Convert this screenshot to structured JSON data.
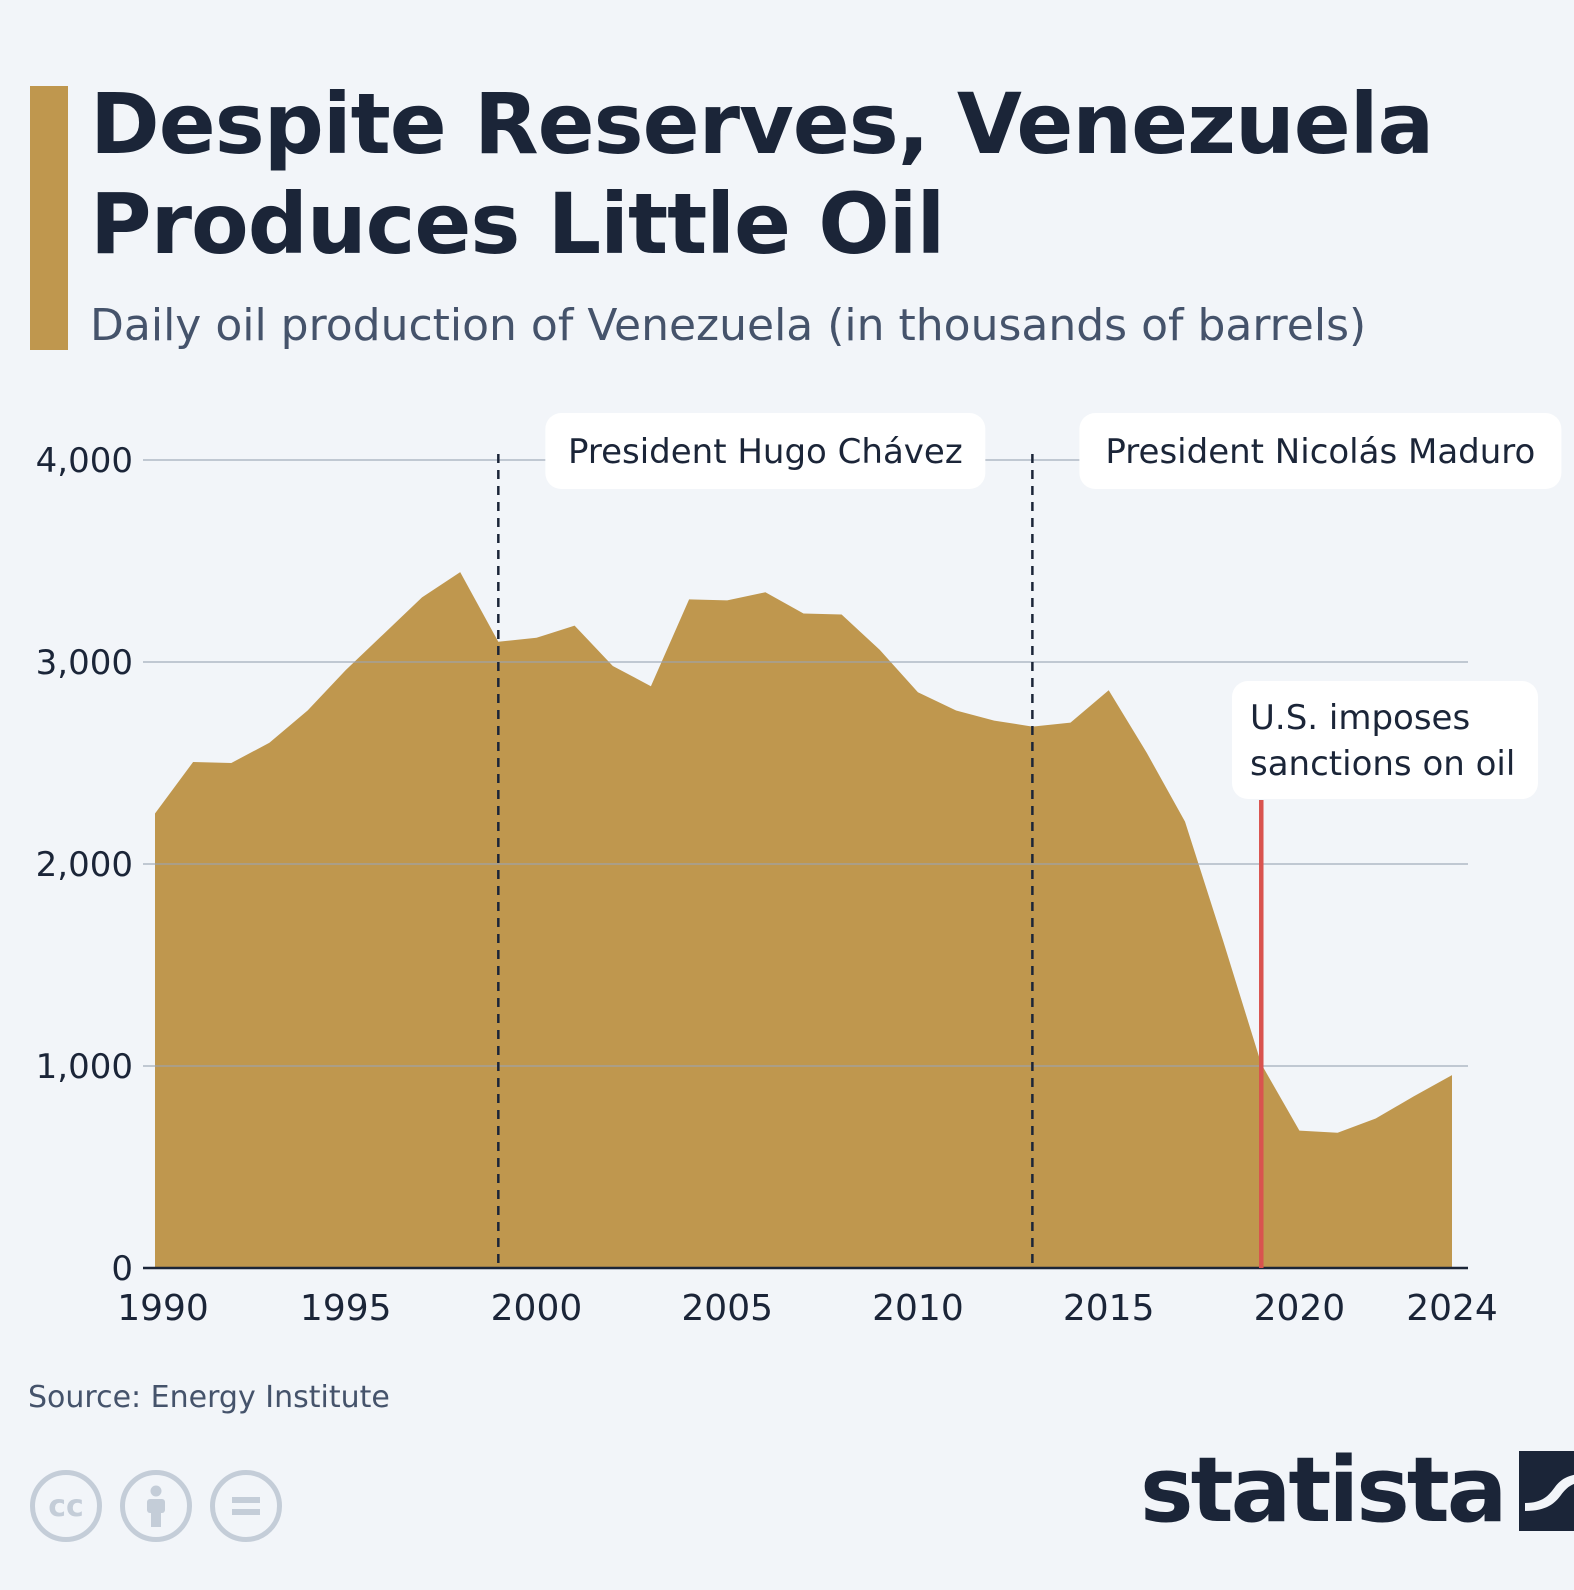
{
  "header": {
    "title": "Despite Reserves, Venezuela Produces Little Oil",
    "subtitle": "Daily oil production of Venezuela (in thousands of barrels)"
  },
  "colors": {
    "accent": "#bf974e",
    "area": "#bf974e",
    "sanction_line": "#d9534f",
    "text_dark": "#1b2538",
    "grid": "#b8c0cc"
  },
  "chart_data": {
    "type": "area",
    "title": "Daily oil production of Venezuela (in thousands of barrels)",
    "xlabel": "",
    "ylabel": "",
    "ylim": [
      0,
      4000
    ],
    "xlim": [
      1990,
      2024
    ],
    "grid": true,
    "x_tick_labels": [
      "1990",
      "1995",
      "2000",
      "2005",
      "2010",
      "2015",
      "2020",
      "2024"
    ],
    "y_tick_labels": [
      "0",
      "1,000",
      "2,000",
      "3,000",
      "4,000"
    ],
    "y_tick_values": [
      0,
      1000,
      2000,
      3000,
      4000
    ],
    "x_tick_values": [
      1990,
      1995,
      2000,
      2005,
      2010,
      2015,
      2020,
      2024
    ],
    "series": [
      {
        "name": "Daily oil production",
        "x": [
          1990,
          1991,
          1992,
          1993,
          1994,
          1995,
          1996,
          1997,
          1998,
          1999,
          2000,
          2001,
          2002,
          2003,
          2004,
          2005,
          2006,
          2007,
          2008,
          2009,
          2010,
          2011,
          2012,
          2013,
          2014,
          2015,
          2016,
          2017,
          2018,
          2019,
          2020,
          2021,
          2022,
          2023,
          2024
        ],
        "values": [
          2250,
          2505,
          2500,
          2600,
          2760,
          2960,
          3140,
          3320,
          3445,
          3100,
          3120,
          3180,
          2980,
          2880,
          3310,
          3305,
          3345,
          3240,
          3235,
          3060,
          2850,
          2760,
          2710,
          2680,
          2700,
          2860,
          2550,
          2210,
          1620,
          1010,
          680,
          670,
          740,
          850,
          955
        ]
      }
    ],
    "annotations": [
      {
        "label": "President Hugo Chávez",
        "x": 1999,
        "style": "dashed"
      },
      {
        "label": "President Nicolás Maduro",
        "x": 2013,
        "style": "dashed"
      },
      {
        "label": "U.S. imposes sanctions on oil",
        "x": 2019,
        "style": "solid"
      }
    ]
  },
  "footer": {
    "source": "Source: Energy Institute",
    "brand": "statista",
    "cc_icons": [
      "cc-icon",
      "attribution-icon",
      "no-derivatives-icon"
    ]
  }
}
